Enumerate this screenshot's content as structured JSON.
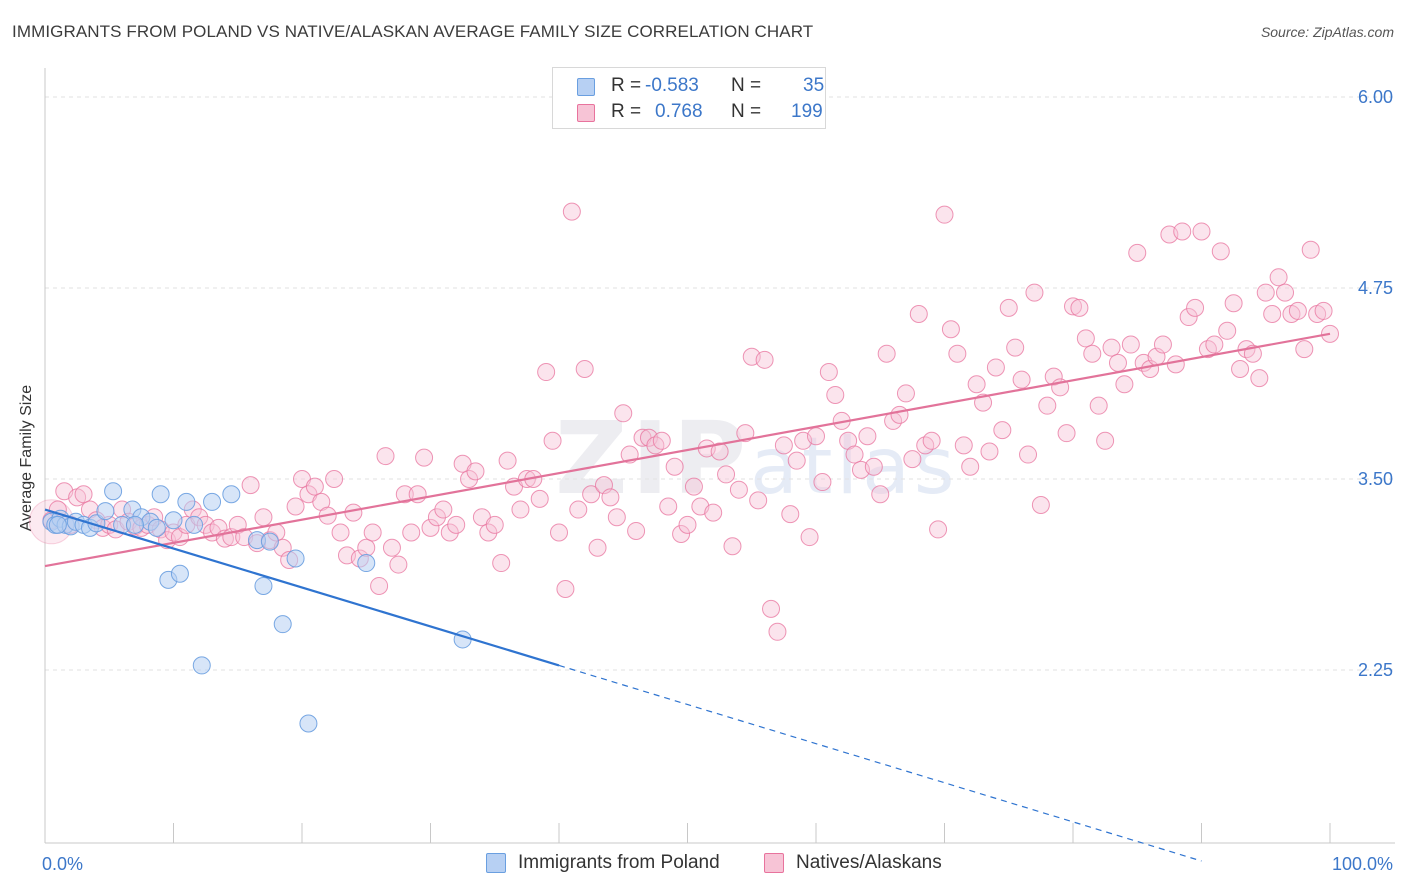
{
  "title": "IMMIGRANTS FROM POLAND VS NATIVE/ALASKAN AVERAGE FAMILY SIZE CORRELATION CHART",
  "source": "Source: ZipAtlas.com",
  "watermark": {
    "bold": "ZIP",
    "light": "atlas"
  },
  "colors": {
    "blue": "#6a9fe0",
    "blue_fill": "#b7d0f3",
    "pink": "#e8739d",
    "pink_fill": "#f7c4d6",
    "accent_text": "#3c77c9"
  },
  "legend": {
    "rows": [
      {
        "r_label": "R =",
        "r_value": "-0.583",
        "n_label": "N =",
        "n_value": "35"
      },
      {
        "r_label": "R =",
        "r_value": "0.768",
        "n_label": "N =",
        "n_value": "199"
      }
    ]
  },
  "bottom_legend": {
    "blue": "Immigrants from Poland",
    "pink": "Natives/Alaskans"
  },
  "chart_data": {
    "type": "scatter",
    "ylabel": "Average Family Size",
    "xlim": [
      0,
      100
    ],
    "ylim": [
      1.0,
      6.1
    ],
    "x_tick_labels": [
      "0.0%",
      "100.0%"
    ],
    "y_ticks": [
      2.25,
      3.5,
      4.75,
      6.0
    ],
    "y_tick_labels": [
      "2.25",
      "3.50",
      "4.75",
      "6.00"
    ],
    "grid": true,
    "series": [
      {
        "name": "Immigrants from Poland",
        "color": "#6a9fe0",
        "trend": {
          "x0": 0,
          "y0": 3.3,
          "x1": 40,
          "y1": 2.28,
          "x_dash_end": 90,
          "y_dash_end": 1.0
        },
        "points": [
          [
            0.5,
            3.22
          ],
          [
            0.8,
            3.2
          ],
          [
            1.2,
            3.24
          ],
          [
            1.6,
            3.2
          ],
          [
            2.0,
            3.19
          ],
          [
            2.4,
            3.22
          ],
          [
            3.0,
            3.2
          ],
          [
            3.5,
            3.18
          ],
          [
            4.0,
            3.21
          ],
          [
            4.7,
            3.29
          ],
          [
            5.3,
            3.42
          ],
          [
            6.0,
            3.2
          ],
          [
            6.8,
            3.3
          ],
          [
            7.5,
            3.25
          ],
          [
            8.2,
            3.22
          ],
          [
            8.7,
            3.18
          ],
          [
            9.0,
            3.4
          ],
          [
            9.6,
            2.84
          ],
          [
            10.0,
            3.23
          ],
          [
            10.5,
            2.88
          ],
          [
            11.0,
            3.35
          ],
          [
            11.6,
            3.2
          ],
          [
            12.2,
            2.28
          ],
          [
            13.0,
            3.35
          ],
          [
            14.5,
            3.4
          ],
          [
            16.5,
            3.1
          ],
          [
            17.0,
            2.8
          ],
          [
            17.5,
            3.09
          ],
          [
            18.5,
            2.55
          ],
          [
            19.5,
            2.98
          ],
          [
            20.5,
            1.9
          ],
          [
            25.0,
            2.95
          ],
          [
            32.5,
            2.45
          ],
          [
            1.0,
            3.2
          ],
          [
            7.0,
            3.2
          ]
        ]
      },
      {
        "name": "Natives/Alaskans",
        "color": "#e8739d",
        "trend": {
          "x0": 0,
          "y0": 2.93,
          "x1": 100,
          "y1": 4.45
        },
        "points": [
          [
            0.5,
            3.23
          ],
          [
            1.0,
            3.3
          ],
          [
            1.5,
            3.42
          ],
          [
            2.0,
            3.2
          ],
          [
            2.5,
            3.38
          ],
          [
            3.0,
            3.4
          ],
          [
            3.5,
            3.3
          ],
          [
            4.0,
            3.23
          ],
          [
            4.5,
            3.18
          ],
          [
            5.0,
            3.2
          ],
          [
            5.5,
            3.17
          ],
          [
            6.0,
            3.3
          ],
          [
            6.5,
            3.22
          ],
          [
            7.0,
            3.19
          ],
          [
            7.5,
            3.18
          ],
          [
            8.0,
            3.2
          ],
          [
            8.5,
            3.25
          ],
          [
            9.0,
            3.17
          ],
          [
            9.5,
            3.1
          ],
          [
            10.0,
            3.15
          ],
          [
            10.5,
            3.12
          ],
          [
            11.0,
            3.2
          ],
          [
            11.5,
            3.3
          ],
          [
            12.0,
            3.25
          ],
          [
            12.5,
            3.2
          ],
          [
            13.0,
            3.15
          ],
          [
            13.5,
            3.18
          ],
          [
            14.0,
            3.11
          ],
          [
            14.5,
            3.12
          ],
          [
            15.0,
            3.2
          ],
          [
            15.5,
            3.12
          ],
          [
            16.0,
            3.46
          ],
          [
            16.5,
            3.08
          ],
          [
            17.0,
            3.25
          ],
          [
            17.5,
            3.1
          ],
          [
            18.0,
            3.15
          ],
          [
            18.5,
            3.05
          ],
          [
            19.0,
            2.97
          ],
          [
            19.5,
            3.32
          ],
          [
            20.0,
            3.5
          ],
          [
            20.5,
            3.4
          ],
          [
            21.0,
            3.45
          ],
          [
            21.5,
            3.35
          ],
          [
            22.0,
            3.26
          ],
          [
            22.5,
            3.5
          ],
          [
            23.0,
            3.15
          ],
          [
            23.5,
            3.0
          ],
          [
            24.0,
            3.28
          ],
          [
            24.5,
            2.98
          ],
          [
            25.0,
            3.05
          ],
          [
            25.5,
            3.15
          ],
          [
            26.0,
            2.8
          ],
          [
            26.5,
            3.65
          ],
          [
            27.0,
            3.05
          ],
          [
            27.5,
            2.94
          ],
          [
            28.0,
            3.4
          ],
          [
            28.5,
            3.15
          ],
          [
            29.0,
            3.4
          ],
          [
            29.5,
            3.64
          ],
          [
            30.0,
            3.18
          ],
          [
            30.5,
            3.25
          ],
          [
            31.0,
            3.3
          ],
          [
            31.5,
            3.15
          ],
          [
            32.0,
            3.2
          ],
          [
            32.5,
            3.6
          ],
          [
            33.0,
            3.5
          ],
          [
            33.5,
            3.55
          ],
          [
            34.0,
            3.25
          ],
          [
            34.5,
            3.15
          ],
          [
            35.0,
            3.2
          ],
          [
            35.5,
            2.95
          ],
          [
            36.0,
            3.62
          ],
          [
            36.5,
            3.45
          ],
          [
            37.0,
            3.3
          ],
          [
            37.5,
            3.5
          ],
          [
            38.0,
            3.5
          ],
          [
            38.5,
            3.37
          ],
          [
            39.0,
            4.2
          ],
          [
            39.5,
            3.75
          ],
          [
            40.0,
            3.15
          ],
          [
            40.5,
            2.78
          ],
          [
            41.0,
            5.25
          ],
          [
            41.5,
            3.3
          ],
          [
            42.0,
            4.22
          ],
          [
            42.5,
            3.4
          ],
          [
            43.0,
            3.05
          ],
          [
            43.5,
            3.46
          ],
          [
            44.0,
            3.38
          ],
          [
            44.5,
            3.25
          ],
          [
            45.0,
            3.93
          ],
          [
            45.5,
            3.66
          ],
          [
            46.0,
            3.16
          ],
          [
            46.5,
            3.77
          ],
          [
            47.0,
            3.77
          ],
          [
            47.5,
            3.72
          ],
          [
            48.0,
            3.75
          ],
          [
            48.5,
            3.32
          ],
          [
            49.0,
            3.58
          ],
          [
            49.5,
            3.14
          ],
          [
            50.0,
            3.2
          ],
          [
            50.5,
            3.45
          ],
          [
            51.0,
            3.32
          ],
          [
            51.5,
            3.7
          ],
          [
            52.0,
            3.28
          ],
          [
            52.5,
            3.68
          ],
          [
            53.0,
            3.53
          ],
          [
            53.5,
            3.06
          ],
          [
            54.0,
            3.43
          ],
          [
            54.5,
            3.8
          ],
          [
            55.0,
            4.3
          ],
          [
            55.5,
            3.36
          ],
          [
            56.0,
            4.28
          ],
          [
            56.5,
            2.65
          ],
          [
            57.0,
            2.5
          ],
          [
            57.5,
            3.72
          ],
          [
            58.0,
            3.27
          ],
          [
            58.5,
            3.62
          ],
          [
            59.0,
            3.75
          ],
          [
            59.5,
            3.12
          ],
          [
            60.0,
            3.78
          ],
          [
            60.5,
            3.48
          ],
          [
            61.0,
            4.2
          ],
          [
            61.5,
            4.05
          ],
          [
            62.0,
            3.88
          ],
          [
            62.5,
            3.75
          ],
          [
            63.0,
            3.66
          ],
          [
            63.5,
            3.56
          ],
          [
            64.0,
            3.78
          ],
          [
            64.5,
            3.58
          ],
          [
            65.0,
            3.4
          ],
          [
            65.5,
            4.32
          ],
          [
            66.0,
            3.88
          ],
          [
            66.5,
            3.92
          ],
          [
            67.0,
            4.06
          ],
          [
            67.5,
            3.63
          ],
          [
            68.0,
            4.58
          ],
          [
            68.5,
            3.72
          ],
          [
            69.0,
            3.75
          ],
          [
            69.5,
            3.17
          ],
          [
            70.0,
            5.23
          ],
          [
            70.5,
            4.48
          ],
          [
            71.0,
            4.32
          ],
          [
            71.5,
            3.72
          ],
          [
            72.0,
            3.58
          ],
          [
            72.5,
            4.12
          ],
          [
            73.0,
            4.0
          ],
          [
            73.5,
            3.68
          ],
          [
            74.0,
            4.23
          ],
          [
            74.5,
            3.82
          ],
          [
            75.0,
            4.62
          ],
          [
            75.5,
            4.36
          ],
          [
            76.0,
            4.15
          ],
          [
            76.5,
            3.66
          ],
          [
            77.0,
            4.72
          ],
          [
            77.5,
            3.33
          ],
          [
            78.0,
            3.98
          ],
          [
            78.5,
            4.17
          ],
          [
            79.0,
            4.1
          ],
          [
            79.5,
            3.8
          ],
          [
            80.0,
            4.63
          ],
          [
            80.5,
            4.62
          ],
          [
            81.0,
            4.42
          ],
          [
            81.5,
            4.32
          ],
          [
            82.0,
            3.98
          ],
          [
            82.5,
            3.75
          ],
          [
            83.0,
            4.36
          ],
          [
            83.5,
            4.26
          ],
          [
            84.0,
            4.12
          ],
          [
            84.5,
            4.38
          ],
          [
            85.0,
            4.98
          ],
          [
            85.5,
            4.26
          ],
          [
            86.0,
            4.22
          ],
          [
            86.5,
            4.3
          ],
          [
            87.0,
            4.38
          ],
          [
            87.5,
            5.1
          ],
          [
            88.0,
            4.25
          ],
          [
            88.5,
            5.12
          ],
          [
            89.0,
            4.56
          ],
          [
            89.5,
            4.62
          ],
          [
            90.0,
            5.12
          ],
          [
            90.5,
            4.35
          ],
          [
            91.0,
            4.38
          ],
          [
            91.5,
            4.99
          ],
          [
            92.0,
            4.47
          ],
          [
            92.5,
            4.65
          ],
          [
            93.0,
            4.22
          ],
          [
            93.5,
            4.35
          ],
          [
            94.0,
            4.32
          ],
          [
            94.5,
            4.16
          ],
          [
            95.0,
            4.72
          ],
          [
            95.5,
            4.58
          ],
          [
            96.0,
            4.82
          ],
          [
            96.5,
            4.72
          ],
          [
            97.0,
            4.58
          ],
          [
            97.5,
            4.6
          ],
          [
            98.0,
            4.35
          ],
          [
            98.5,
            5.0
          ],
          [
            99.0,
            4.58
          ],
          [
            99.5,
            4.6
          ],
          [
            100.0,
            4.45
          ]
        ]
      }
    ]
  }
}
